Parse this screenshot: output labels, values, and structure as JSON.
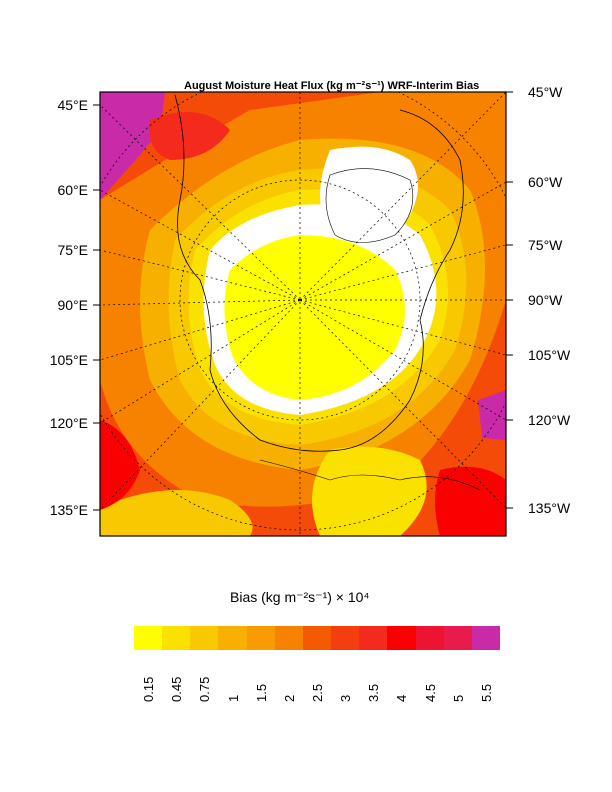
{
  "title": "August Moisture Heat Flux (kg m⁻²s⁻¹) WRF-Interim Bias",
  "left_labels": [
    "45°E",
    "60°E",
    "75°E",
    "90°E",
    "105°E",
    "120°E",
    "135°E"
  ],
  "right_labels": [
    "45°W",
    "60°W",
    "75°W",
    "90°W",
    "105°W",
    "120°W",
    "135°W"
  ],
  "colorbar": {
    "title": "Bias (kg m⁻²s⁻¹) × 10⁴",
    "labels": [
      "0.15",
      "0.45",
      "0.75",
      "1",
      "1.5",
      "2",
      "2.5",
      "3",
      "3.5",
      "4",
      "4.5",
      "5",
      "5.5"
    ],
    "colors": [
      "#ffff00",
      "#fbe100",
      "#f8c800",
      "#f7b000",
      "#f79b00",
      "#f68200",
      "#f55a00",
      "#f43e10",
      "#f42a1c",
      "#fa0000",
      "#ee1330",
      "#e91a4c",
      "#c92aa8"
    ]
  }
}
